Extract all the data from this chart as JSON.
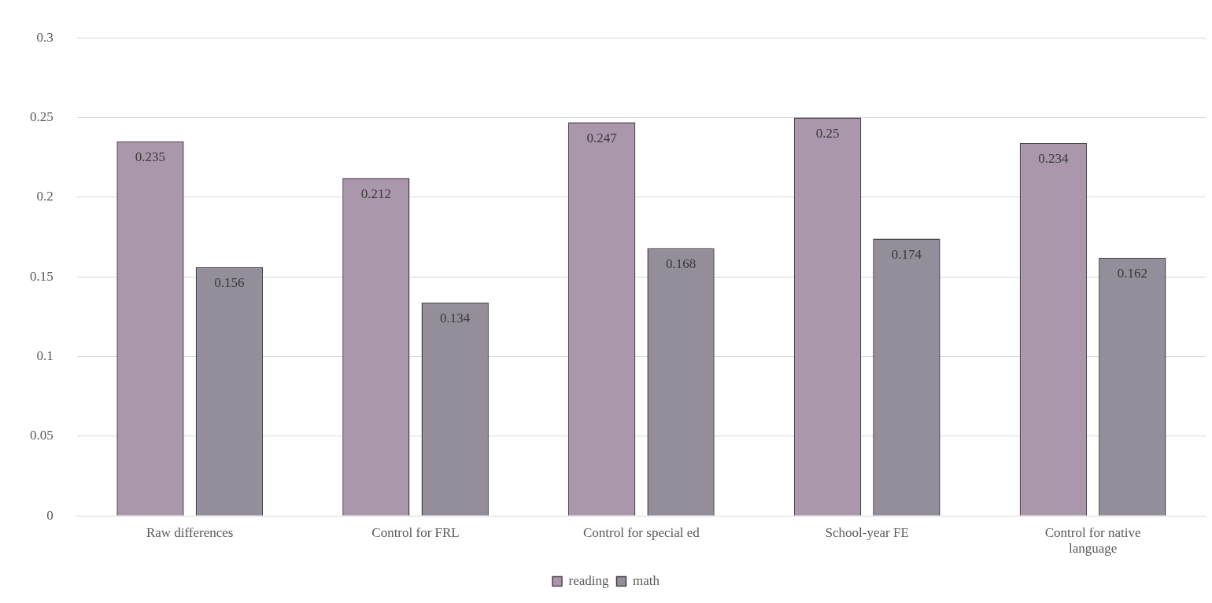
{
  "chart_data": {
    "type": "bar",
    "categories": [
      "Raw differences",
      "Control for FRL",
      "Control for special ed",
      "School-year FE",
      "Control for native language"
    ],
    "series": [
      {
        "name": "reading",
        "color": "#ab97ab",
        "values": [
          0.235,
          0.212,
          0.247,
          0.25,
          0.234
        ]
      },
      {
        "name": "math",
        "color": "#938e99",
        "values": [
          0.156,
          0.134,
          0.168,
          0.174,
          0.162
        ]
      }
    ],
    "ylim": [
      0,
      0.3
    ],
    "yticks": [
      0,
      0.05,
      0.1,
      0.15,
      0.2,
      0.25,
      0.3
    ],
    "grid": "y",
    "legend": "bottom",
    "data_labels": true
  }
}
